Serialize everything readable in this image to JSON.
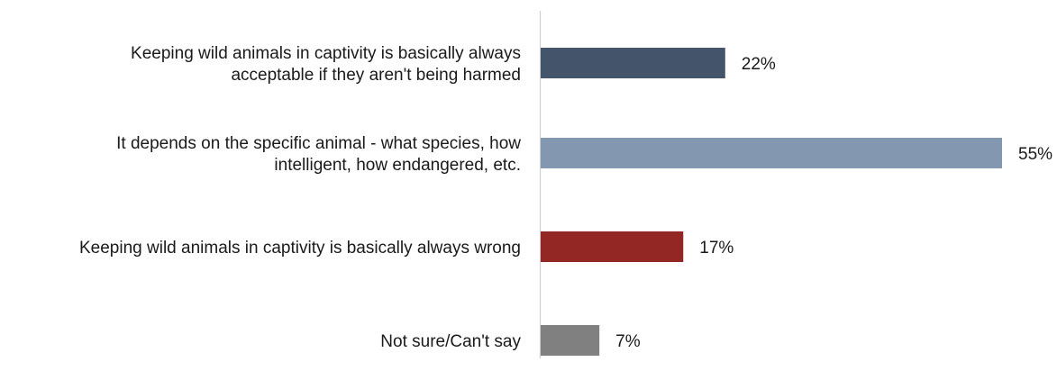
{
  "chart_data": {
    "type": "bar",
    "orientation": "horizontal",
    "categories": [
      [
        "Keeping wild animals in captivity is basically always",
        "acceptable if they aren't being harmed"
      ],
      [
        "It depends on the specific animal - what species, how",
        "intelligent, how endangered, etc."
      ],
      [
        "Keeping wild animals in captivity is basically always wrong"
      ],
      [
        "Not sure/Can't say"
      ]
    ],
    "values": [
      22,
      55,
      17,
      7
    ],
    "data_labels": [
      "22%",
      "55%",
      "17%",
      "7%"
    ],
    "colors": [
      "#44546a",
      "#8497b0",
      "#922724",
      "#808080"
    ],
    "xlim": [
      0,
      55
    ],
    "unit": "%",
    "grid": false,
    "legend": "none",
    "axis_color": "#d0d0d0"
  }
}
